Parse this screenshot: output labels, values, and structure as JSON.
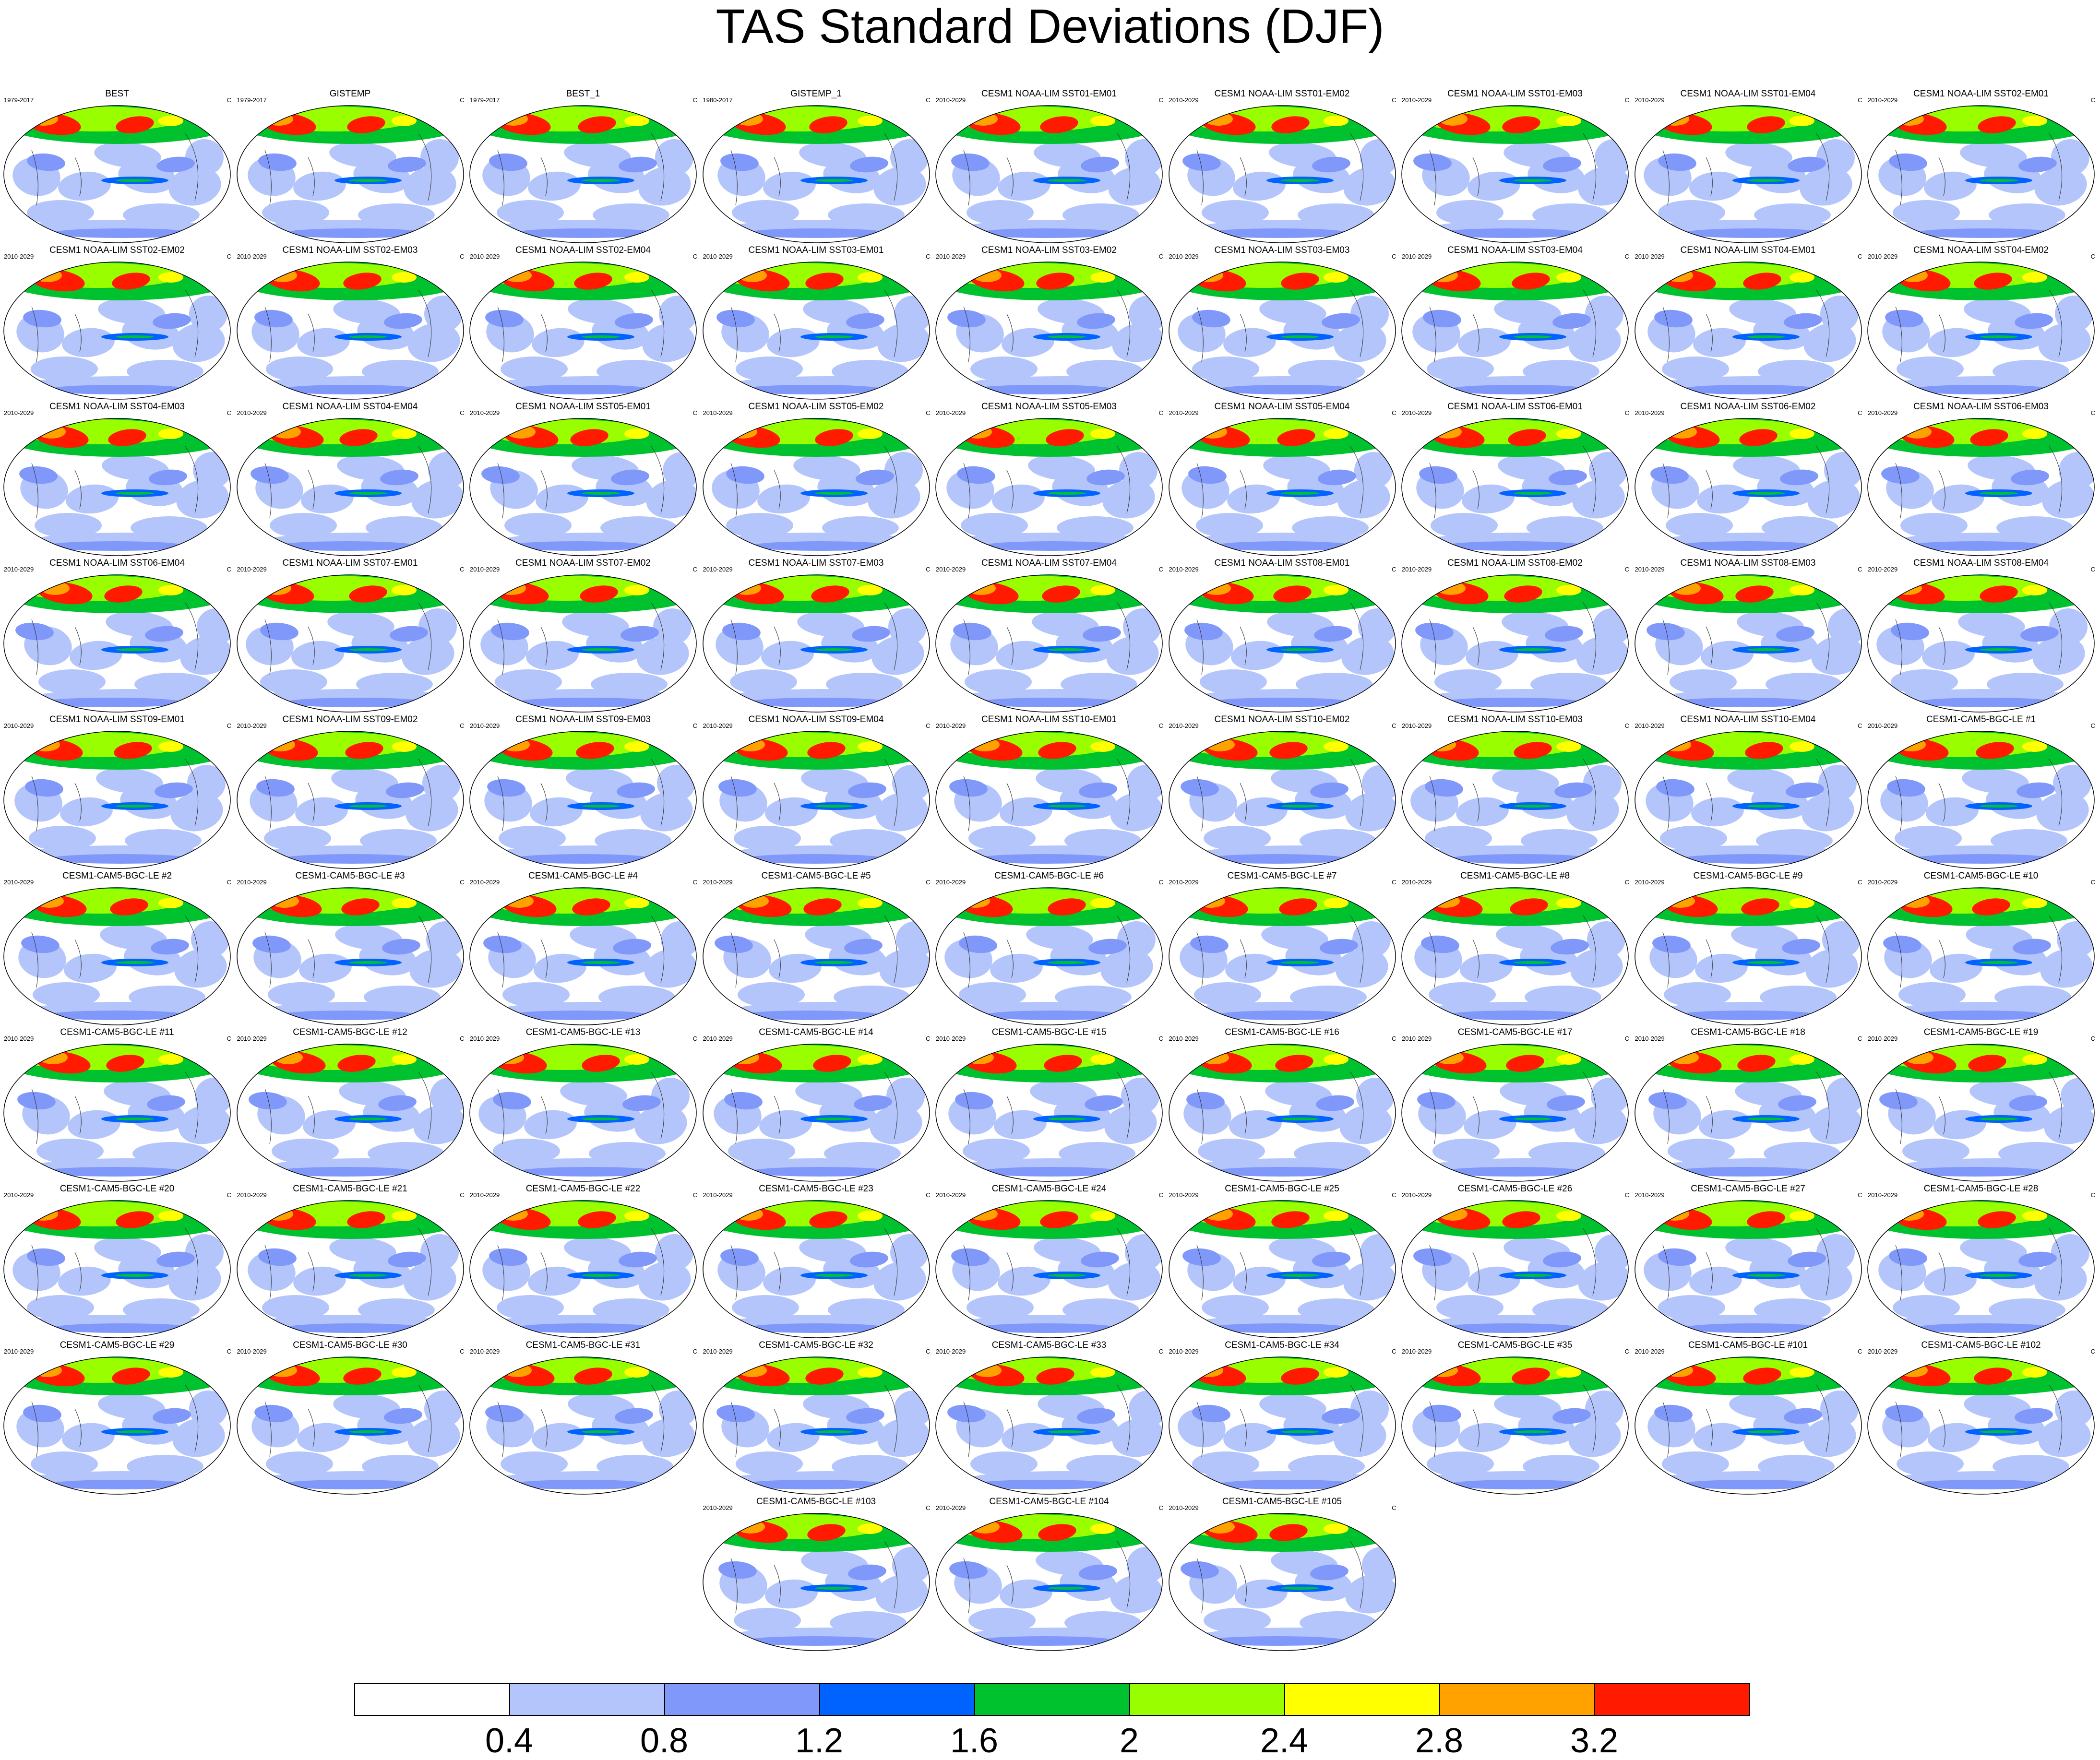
{
  "chart_data": {
    "type": "heatmap",
    "title": "TAS Standard Deviations (DJF)",
    "units": "C",
    "panels": [
      {
        "name": "BEST",
        "period": "1979-2017"
      },
      {
        "name": "GISTEMP",
        "period": "1979-2017"
      },
      {
        "name": "BEST_1",
        "period": "1979-2017"
      },
      {
        "name": "GISTEMP_1",
        "period": "1980-2017"
      },
      {
        "name": "CESM1 NOAA-LIM SST01-EM01",
        "period": "2010-2029"
      },
      {
        "name": "CESM1 NOAA-LIM SST01-EM02",
        "period": "2010-2029"
      },
      {
        "name": "CESM1 NOAA-LIM SST01-EM03",
        "period": "2010-2029"
      },
      {
        "name": "CESM1 NOAA-LIM SST01-EM04",
        "period": "2010-2029"
      },
      {
        "name": "CESM1 NOAA-LIM SST02-EM01",
        "period": "2010-2029"
      },
      {
        "name": "CESM1 NOAA-LIM SST02-EM02",
        "period": "2010-2029"
      },
      {
        "name": "CESM1 NOAA-LIM SST02-EM03",
        "period": "2010-2029"
      },
      {
        "name": "CESM1 NOAA-LIM SST02-EM04",
        "period": "2010-2029"
      },
      {
        "name": "CESM1 NOAA-LIM SST03-EM01",
        "period": "2010-2029"
      },
      {
        "name": "CESM1 NOAA-LIM SST03-EM02",
        "period": "2010-2029"
      },
      {
        "name": "CESM1 NOAA-LIM SST03-EM03",
        "period": "2010-2029"
      },
      {
        "name": "CESM1 NOAA-LIM SST03-EM04",
        "period": "2010-2029"
      },
      {
        "name": "CESM1 NOAA-LIM SST04-EM01",
        "period": "2010-2029"
      },
      {
        "name": "CESM1 NOAA-LIM SST04-EM02",
        "period": "2010-2029"
      },
      {
        "name": "CESM1 NOAA-LIM SST04-EM03",
        "period": "2010-2029"
      },
      {
        "name": "CESM1 NOAA-LIM SST04-EM04",
        "period": "2010-2029"
      },
      {
        "name": "CESM1 NOAA-LIM SST05-EM01",
        "period": "2010-2029"
      },
      {
        "name": "CESM1 NOAA-LIM SST05-EM02",
        "period": "2010-2029"
      },
      {
        "name": "CESM1 NOAA-LIM SST05-EM03",
        "period": "2010-2029"
      },
      {
        "name": "CESM1 NOAA-LIM SST05-EM04",
        "period": "2010-2029"
      },
      {
        "name": "CESM1 NOAA-LIM SST06-EM01",
        "period": "2010-2029"
      },
      {
        "name": "CESM1 NOAA-LIM SST06-EM02",
        "period": "2010-2029"
      },
      {
        "name": "CESM1 NOAA-LIM SST06-EM03",
        "period": "2010-2029"
      },
      {
        "name": "CESM1 NOAA-LIM SST06-EM04",
        "period": "2010-2029"
      },
      {
        "name": "CESM1 NOAA-LIM SST07-EM01",
        "period": "2010-2029"
      },
      {
        "name": "CESM1 NOAA-LIM SST07-EM02",
        "period": "2010-2029"
      },
      {
        "name": "CESM1 NOAA-LIM SST07-EM03",
        "period": "2010-2029"
      },
      {
        "name": "CESM1 NOAA-LIM SST07-EM04",
        "period": "2010-2029"
      },
      {
        "name": "CESM1 NOAA-LIM SST08-EM01",
        "period": "2010-2029"
      },
      {
        "name": "CESM1 NOAA-LIM SST08-EM02",
        "period": "2010-2029"
      },
      {
        "name": "CESM1 NOAA-LIM SST08-EM03",
        "period": "2010-2029"
      },
      {
        "name": "CESM1 NOAA-LIM SST08-EM04",
        "period": "2010-2029"
      },
      {
        "name": "CESM1 NOAA-LIM SST09-EM01",
        "period": "2010-2029"
      },
      {
        "name": "CESM1 NOAA-LIM SST09-EM02",
        "period": "2010-2029"
      },
      {
        "name": "CESM1 NOAA-LIM SST09-EM03",
        "period": "2010-2029"
      },
      {
        "name": "CESM1 NOAA-LIM SST09-EM04",
        "period": "2010-2029"
      },
      {
        "name": "CESM1 NOAA-LIM SST10-EM01",
        "period": "2010-2029"
      },
      {
        "name": "CESM1 NOAA-LIM SST10-EM02",
        "period": "2010-2029"
      },
      {
        "name": "CESM1 NOAA-LIM SST10-EM03",
        "period": "2010-2029"
      },
      {
        "name": "CESM1 NOAA-LIM SST10-EM04",
        "period": "2010-2029"
      },
      {
        "name": "CESM1-CAM5-BGC-LE #1",
        "period": "2010-2029"
      },
      {
        "name": "CESM1-CAM5-BGC-LE #2",
        "period": "2010-2029"
      },
      {
        "name": "CESM1-CAM5-BGC-LE #3",
        "period": "2010-2029"
      },
      {
        "name": "CESM1-CAM5-BGC-LE #4",
        "period": "2010-2029"
      },
      {
        "name": "CESM1-CAM5-BGC-LE #5",
        "period": "2010-2029"
      },
      {
        "name": "CESM1-CAM5-BGC-LE #6",
        "period": "2010-2029"
      },
      {
        "name": "CESM1-CAM5-BGC-LE #7",
        "period": "2010-2029"
      },
      {
        "name": "CESM1-CAM5-BGC-LE #8",
        "period": "2010-2029"
      },
      {
        "name": "CESM1-CAM5-BGC-LE #9",
        "period": "2010-2029"
      },
      {
        "name": "CESM1-CAM5-BGC-LE #10",
        "period": "2010-2029"
      },
      {
        "name": "CESM1-CAM5-BGC-LE #11",
        "period": "2010-2029"
      },
      {
        "name": "CESM1-CAM5-BGC-LE #12",
        "period": "2010-2029"
      },
      {
        "name": "CESM1-CAM5-BGC-LE #13",
        "period": "2010-2029"
      },
      {
        "name": "CESM1-CAM5-BGC-LE #14",
        "period": "2010-2029"
      },
      {
        "name": "CESM1-CAM5-BGC-LE #15",
        "period": "2010-2029"
      },
      {
        "name": "CESM1-CAM5-BGC-LE #16",
        "period": "2010-2029"
      },
      {
        "name": "CESM1-CAM5-BGC-LE #17",
        "period": "2010-2029"
      },
      {
        "name": "CESM1-CAM5-BGC-LE #18",
        "period": "2010-2029"
      },
      {
        "name": "CESM1-CAM5-BGC-LE #19",
        "period": "2010-2029"
      },
      {
        "name": "CESM1-CAM5-BGC-LE #20",
        "period": "2010-2029"
      },
      {
        "name": "CESM1-CAM5-BGC-LE #21",
        "period": "2010-2029"
      },
      {
        "name": "CESM1-CAM5-BGC-LE #22",
        "period": "2010-2029"
      },
      {
        "name": "CESM1-CAM5-BGC-LE #23",
        "period": "2010-2029"
      },
      {
        "name": "CESM1-CAM5-BGC-LE #24",
        "period": "2010-2029"
      },
      {
        "name": "CESM1-CAM5-BGC-LE #25",
        "period": "2010-2029"
      },
      {
        "name": "CESM1-CAM5-BGC-LE #26",
        "period": "2010-2029"
      },
      {
        "name": "CESM1-CAM5-BGC-LE #27",
        "period": "2010-2029"
      },
      {
        "name": "CESM1-CAM5-BGC-LE #28",
        "period": "2010-2029"
      },
      {
        "name": "CESM1-CAM5-BGC-LE #29",
        "period": "2010-2029"
      },
      {
        "name": "CESM1-CAM5-BGC-LE #30",
        "period": "2010-2029"
      },
      {
        "name": "CESM1-CAM5-BGC-LE #31",
        "period": "2010-2029"
      },
      {
        "name": "CESM1-CAM5-BGC-LE #32",
        "period": "2010-2029"
      },
      {
        "name": "CESM1-CAM5-BGC-LE #33",
        "period": "2010-2029"
      },
      {
        "name": "CESM1-CAM5-BGC-LE #34",
        "period": "2010-2029"
      },
      {
        "name": "CESM1-CAM5-BGC-LE #35",
        "period": "2010-2029"
      },
      {
        "name": "CESM1-CAM5-BGC-LE #101",
        "period": "2010-2029"
      },
      {
        "name": "CESM1-CAM5-BGC-LE #102",
        "period": "2010-2029"
      },
      {
        "name": "CESM1-CAM5-BGC-LE #103",
        "period": "2010-2029"
      },
      {
        "name": "CESM1-CAM5-BGC-LE #104",
        "period": "2010-2029"
      },
      {
        "name": "CESM1-CAM5-BGC-LE #105",
        "period": "2010-2029"
      }
    ],
    "colorbar": {
      "levels": [
        0.4,
        0.8,
        1.2,
        1.6,
        2,
        2.4,
        2.8,
        3.2
      ],
      "tick_labels": [
        "0.4",
        "0.8",
        "1.2",
        "1.6",
        "2",
        "2.4",
        "2.8",
        "3.2"
      ],
      "colors": [
        "#ffffff",
        "#b4c5fb",
        "#7f98fa",
        "#0062ff",
        "#00c22f",
        "#99ff00",
        "#ffff00",
        "#ffa200",
        "#ff1a00"
      ]
    }
  }
}
